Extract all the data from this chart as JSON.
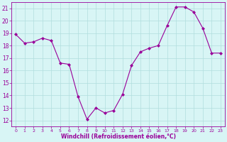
{
  "x": [
    0,
    1,
    2,
    3,
    4,
    5,
    6,
    7,
    8,
    9,
    10,
    11,
    12,
    13,
    14,
    15,
    16,
    17,
    18,
    19,
    20,
    21,
    22,
    23
  ],
  "y": [
    18.9,
    18.2,
    18.3,
    18.6,
    18.4,
    16.6,
    16.5,
    13.9,
    12.1,
    13.0,
    12.6,
    12.8,
    14.1,
    16.4,
    17.5,
    17.8,
    18.0,
    19.6,
    21.1,
    21.1,
    20.7,
    19.4,
    17.4,
    17.4
  ],
  "line_color": "#990099",
  "marker": "D",
  "marker_size": 2,
  "bg_color": "#d8f5f5",
  "grid_color": "#b0dede",
  "xlabel": "Windchill (Refroidissement éolien,°C)",
  "xlabel_color": "#990099",
  "tick_color": "#990099",
  "ylim": [
    11.5,
    21.5
  ],
  "xlim": [
    -0.5,
    23.5
  ],
  "yticks": [
    12,
    13,
    14,
    15,
    16,
    17,
    18,
    19,
    20,
    21
  ],
  "xticks": [
    0,
    1,
    2,
    3,
    4,
    5,
    6,
    7,
    8,
    9,
    10,
    11,
    12,
    13,
    14,
    15,
    16,
    17,
    18,
    19,
    20,
    21,
    22,
    23
  ]
}
